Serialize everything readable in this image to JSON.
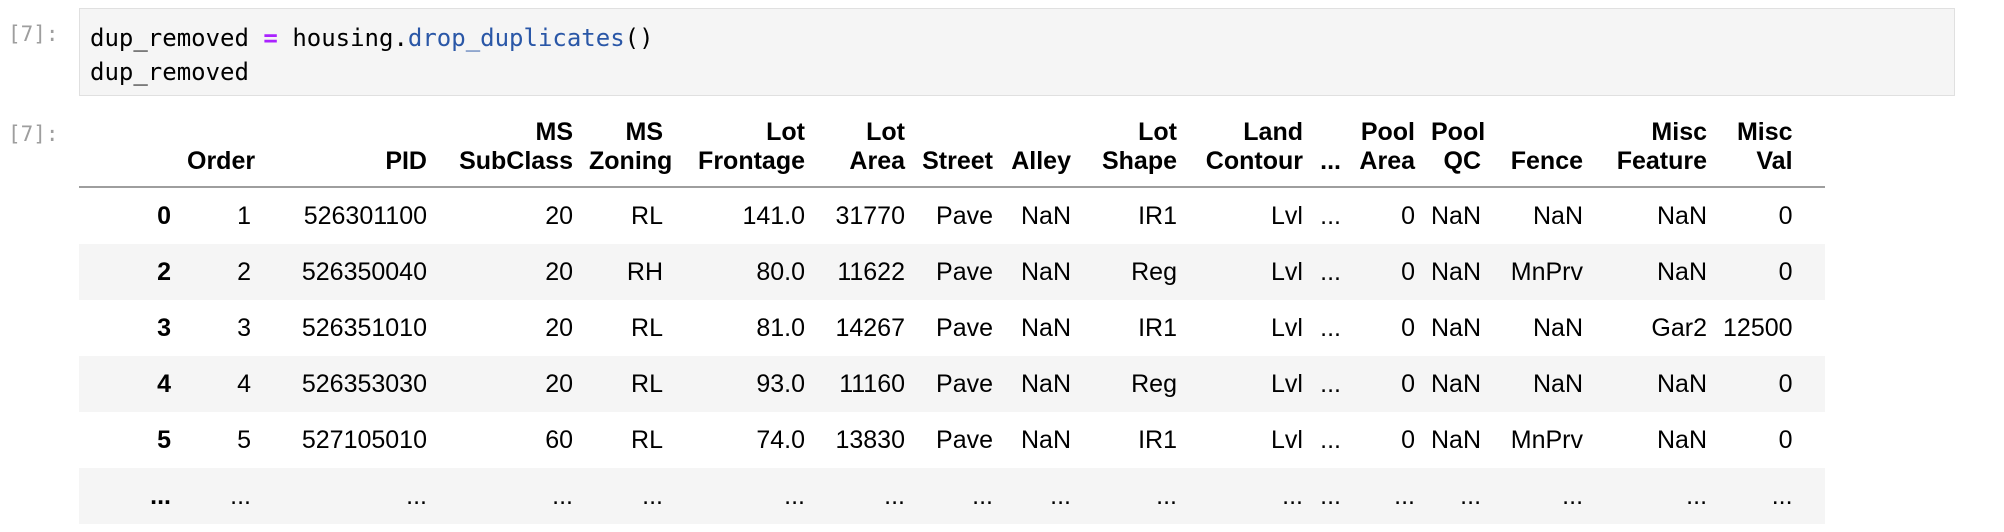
{
  "input_prompt": "[7]:",
  "output_prompt": "[7]:",
  "code": {
    "var": "dup_removed",
    "op": "=",
    "obj": "housing.",
    "method": "drop_duplicates",
    "args": "()",
    "line2": "dup_removed"
  },
  "table": {
    "columns": [
      {
        "l1": "",
        "l2": ""
      },
      {
        "l1": "",
        "l2": "Order"
      },
      {
        "l1": "",
        "l2": "PID"
      },
      {
        "l1": "MS",
        "l2": "SubClass"
      },
      {
        "l1": "MS",
        "l2": "Zoning"
      },
      {
        "l1": "Lot",
        "l2": "Frontage"
      },
      {
        "l1": "Lot",
        "l2": "Area"
      },
      {
        "l1": "",
        "l2": "Street"
      },
      {
        "l1": "",
        "l2": "Alley"
      },
      {
        "l1": "Lot",
        "l2": "Shape"
      },
      {
        "l1": "Land",
        "l2": "Contour"
      },
      {
        "l1": "",
        "l2": "..."
      },
      {
        "l1": "Pool",
        "l2": "Area"
      },
      {
        "l1": "Pool",
        "l2": "QC"
      },
      {
        "l1": "",
        "l2": "Fence"
      },
      {
        "l1": "Misc",
        "l2": "Feature"
      },
      {
        "l1": "Misc",
        "l2": "Val"
      }
    ],
    "rows": [
      [
        "0",
        "1",
        "526301100",
        "20",
        "RL",
        "141.0",
        "31770",
        "Pave",
        "NaN",
        "IR1",
        "Lvl",
        "...",
        "0",
        "NaN",
        "NaN",
        "NaN",
        "0"
      ],
      [
        "2",
        "2",
        "526350040",
        "20",
        "RH",
        "80.0",
        "11622",
        "Pave",
        "NaN",
        "Reg",
        "Lvl",
        "...",
        "0",
        "NaN",
        "MnPrv",
        "NaN",
        "0"
      ],
      [
        "3",
        "3",
        "526351010",
        "20",
        "RL",
        "81.0",
        "14267",
        "Pave",
        "NaN",
        "IR1",
        "Lvl",
        "...",
        "0",
        "NaN",
        "NaN",
        "Gar2",
        "12500"
      ],
      [
        "4",
        "4",
        "526353030",
        "20",
        "RL",
        "93.0",
        "11160",
        "Pave",
        "NaN",
        "Reg",
        "Lvl",
        "...",
        "0",
        "NaN",
        "NaN",
        "NaN",
        "0"
      ],
      [
        "5",
        "5",
        "527105010",
        "60",
        "RL",
        "74.0",
        "13830",
        "Pave",
        "NaN",
        "IR1",
        "Lvl",
        "...",
        "0",
        "NaN",
        "MnPrv",
        "NaN",
        "0"
      ],
      [
        "...",
        "...",
        "...",
        "...",
        "...",
        "...",
        "...",
        "...",
        "...",
        "...",
        "...",
        "...",
        "...",
        "...",
        "...",
        "...",
        "..."
      ]
    ]
  }
}
